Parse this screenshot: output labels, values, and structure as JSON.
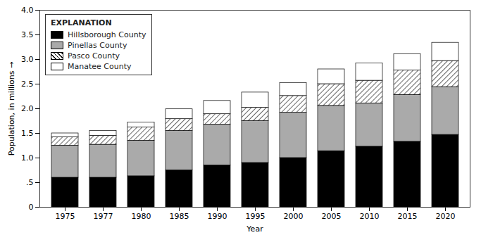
{
  "chart_data": {
    "type": "bar",
    "stacked": true,
    "xlabel": "Year",
    "ylabel": "Population, in millions",
    "legend": "upper left",
    "legend_title": "EXPLANATION",
    "categories": [
      "1975",
      "1977",
      "1980",
      "1985",
      "1990",
      "1995",
      "2000",
      "2005",
      "2010",
      "2015",
      "2020"
    ],
    "series": [
      {
        "name": "Hillsborough County",
        "color": "#000000",
        "values": [
          0.6,
          0.6,
          0.63,
          0.75,
          0.85,
          0.9,
          1.0,
          1.14,
          1.23,
          1.33,
          1.47
        ]
      },
      {
        "name": "Pinellas County",
        "color": "#aaaaaa",
        "values": [
          0.65,
          0.67,
          0.72,
          0.8,
          0.83,
          0.85,
          0.92,
          0.92,
          0.88,
          0.95,
          0.97
        ]
      },
      {
        "name": "Pasco County",
        "color": "#ffffff",
        "marker": "hatch",
        "values": [
          0.17,
          0.18,
          0.27,
          0.24,
          0.21,
          0.27,
          0.34,
          0.44,
          0.46,
          0.5,
          0.53
        ]
      },
      {
        "name": "Manatee County",
        "color": "#ffffff",
        "values": [
          0.08,
          0.1,
          0.1,
          0.2,
          0.27,
          0.31,
          0.26,
          0.3,
          0.35,
          0.33,
          0.37
        ]
      }
    ],
    "ylim": [
      0,
      4.0
    ],
    "yticks": [
      0,
      {
        "value": 0.5,
        "label": ".5"
      },
      {
        "value": 1.0,
        "label": "1.0"
      },
      {
        "value": 1.5,
        "label": "1.5"
      },
      {
        "value": 2.0,
        "label": "2.0"
      },
      {
        "value": 2.5,
        "label": "2.5"
      },
      {
        "value": 3.0,
        "label": "3.0"
      },
      {
        "value": 3.5,
        "label": "3.5"
      },
      {
        "value": 4.0,
        "label": "4.0"
      }
    ]
  }
}
